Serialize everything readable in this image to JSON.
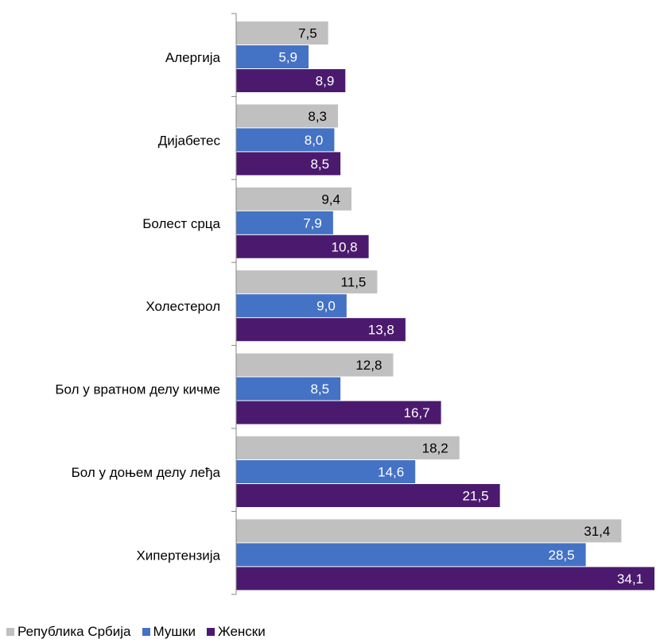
{
  "chart_data": {
    "type": "bar",
    "orientation": "horizontal",
    "categories": [
      "Алергија",
      "Дијабетес",
      "Болест срца",
      "Холестерол",
      "Бол у вратном делу кичме",
      "Бол у доњем делу леђа",
      "Хипертензија"
    ],
    "series": [
      {
        "name": "Република Србија",
        "color": "#c0c0c0",
        "label_color": "#000000",
        "values": [
          7.5,
          8.3,
          9.4,
          11.5,
          12.8,
          18.2,
          31.4
        ],
        "labels": [
          "7,5",
          "8,3",
          "9,4",
          "11,5",
          "12,8",
          "18,2",
          "31,4"
        ]
      },
      {
        "name": "Мушки",
        "color": "#4472c4",
        "label_color": "#ffffff",
        "values": [
          5.9,
          8.0,
          7.9,
          9.0,
          8.5,
          14.6,
          28.5
        ],
        "labels": [
          "5,9",
          "8,0",
          "7,9",
          "9,0",
          "8,5",
          "14,6",
          "28,5"
        ]
      },
      {
        "name": "Женски",
        "color": "#4b1a6e",
        "label_color": "#ffffff",
        "values": [
          8.9,
          8.5,
          10.8,
          13.8,
          16.7,
          21.5,
          34.1
        ],
        "labels": [
          "8,9",
          "8,5",
          "10,8",
          "13,8",
          "16,7",
          "21,5",
          "34,1"
        ]
      }
    ],
    "xlim": [
      0,
      34.1
    ],
    "axis_color": "#868686",
    "grid": false,
    "legend_position": "bottom-left",
    "data_labels": true
  }
}
